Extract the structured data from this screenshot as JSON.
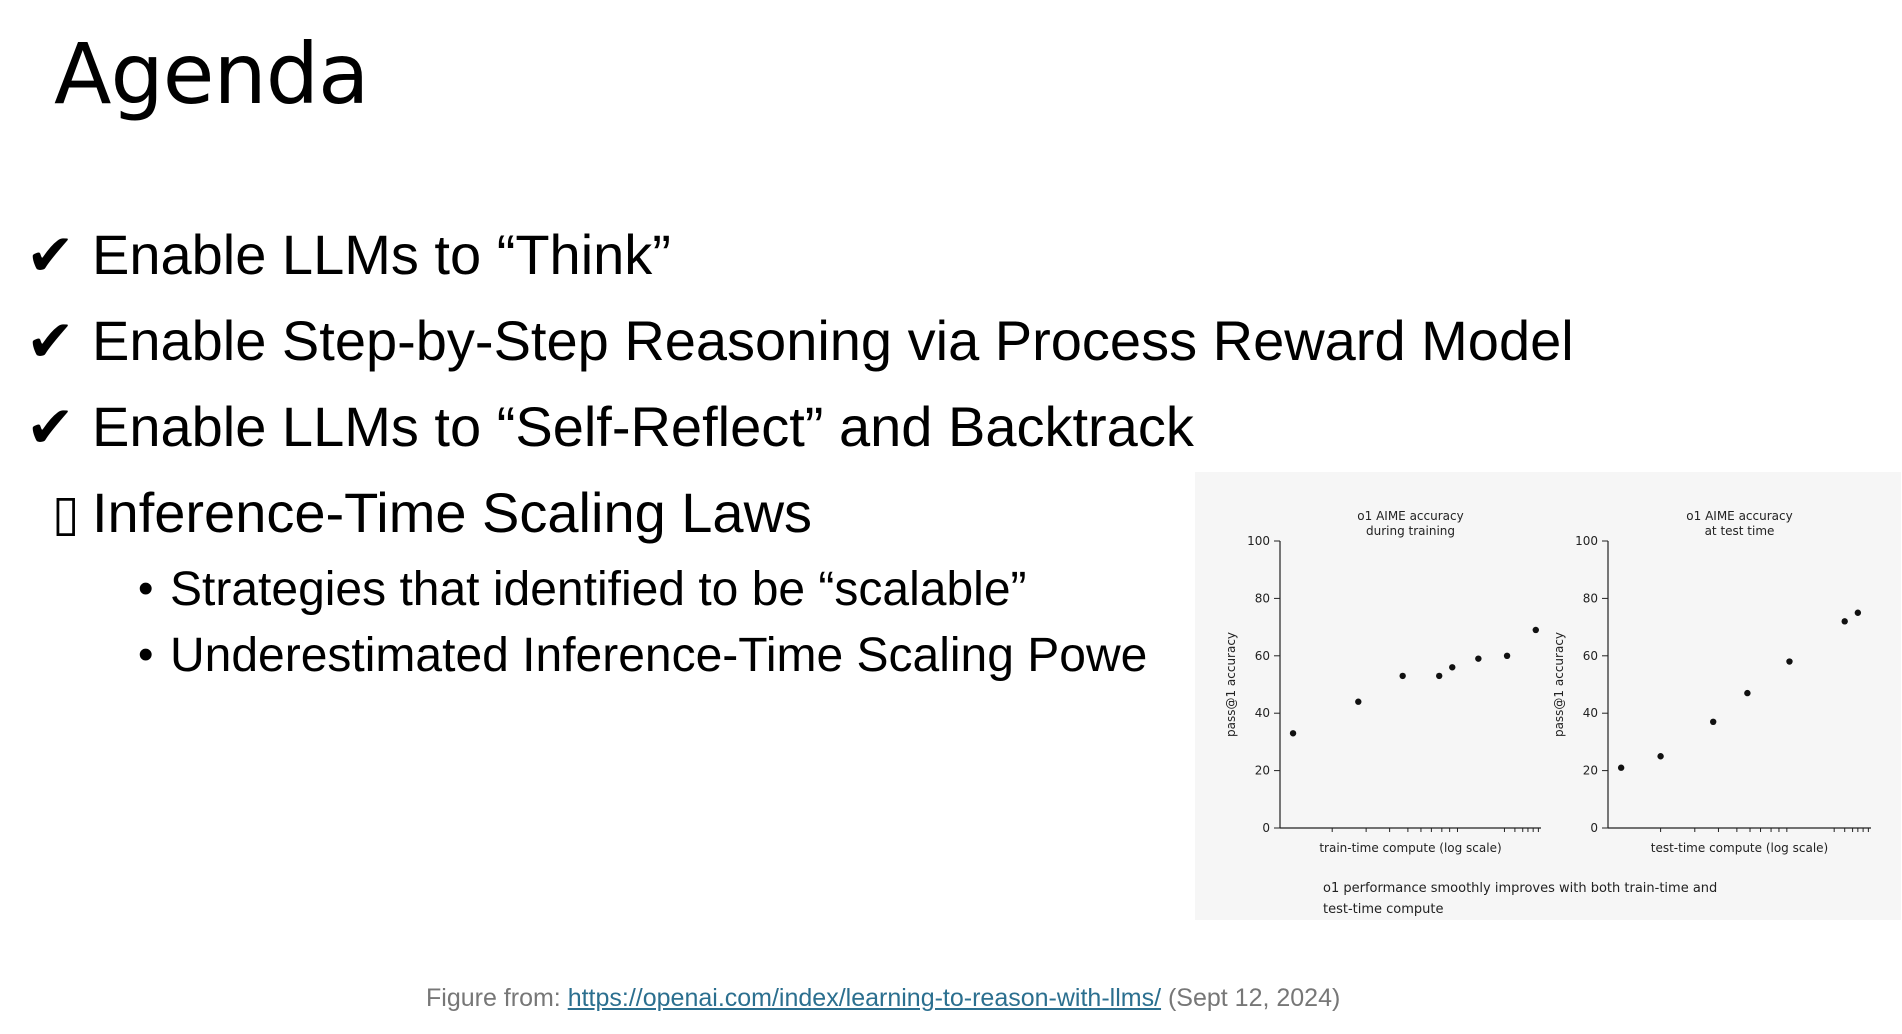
{
  "slide": {
    "title": "Agenda"
  },
  "agenda": {
    "items": [
      {
        "mark": "✔",
        "text": "Enable LLMs to “Think”"
      },
      {
        "mark": "✔",
        "text": "Enable Step-by-Step Reasoning via Process Reward Model"
      },
      {
        "mark": "✔",
        "text": "Enable LLMs to “Self-Reflect” and Backtrack"
      },
      {
        "mark": "▯",
        "text": "Inference-Time Scaling Laws"
      }
    ],
    "subitems": [
      {
        "bullet": "•",
        "text": "Strategies that identified to be “scalable”"
      },
      {
        "bullet": "•",
        "text": "Underestimated Inference-Time Scaling Powe"
      }
    ]
  },
  "chart_data": [
    {
      "type": "scatter",
      "title": "o1 AIME accuracy during training",
      "title_lines": [
        "o1 AIME accuracy",
        "during training"
      ],
      "xlabel": "train-time compute (log scale)",
      "ylabel": "pass@1 accuracy",
      "ylim": [
        0,
        100
      ],
      "yticks": [
        "0",
        "20",
        "40",
        "60",
        "80",
        "100"
      ],
      "x_scale": "log",
      "points": [
        {
          "x": 0.05,
          "y": 33
        },
        {
          "x": 0.3,
          "y": 44
        },
        {
          "x": 0.47,
          "y": 53
        },
        {
          "x": 0.61,
          "y": 53
        },
        {
          "x": 0.66,
          "y": 56
        },
        {
          "x": 0.76,
          "y": 59
        },
        {
          "x": 0.87,
          "y": 60
        },
        {
          "x": 0.98,
          "y": 69
        }
      ],
      "grid": false,
      "point_color": "#111111"
    },
    {
      "type": "scatter",
      "title": "o1 AIME accuracy at test time",
      "title_lines": [
        "o1 AIME accuracy",
        "at test time"
      ],
      "xlabel": "test-time compute (log scale)",
      "ylabel": "pass@1 accuracy",
      "ylim": [
        0,
        100
      ],
      "yticks": [
        "0",
        "20",
        "40",
        "60",
        "80",
        "100"
      ],
      "x_scale": "log",
      "points": [
        {
          "x": 0.05,
          "y": 21
        },
        {
          "x": 0.2,
          "y": 25
        },
        {
          "x": 0.4,
          "y": 37
        },
        {
          "x": 0.53,
          "y": 47
        },
        {
          "x": 0.69,
          "y": 58
        },
        {
          "x": 0.9,
          "y": 72
        },
        {
          "x": 0.95,
          "y": 75
        }
      ],
      "grid": false,
      "point_color": "#111111"
    }
  ],
  "figure": {
    "caption": "o1 performance smoothly improves with both train-time and test-time compute",
    "credit_prefix": "Figure from: ",
    "credit_link": "https://openai.com/index/learning-to-reason-with-llms/",
    "credit_suffix": " (Sept 12, 2024)"
  }
}
